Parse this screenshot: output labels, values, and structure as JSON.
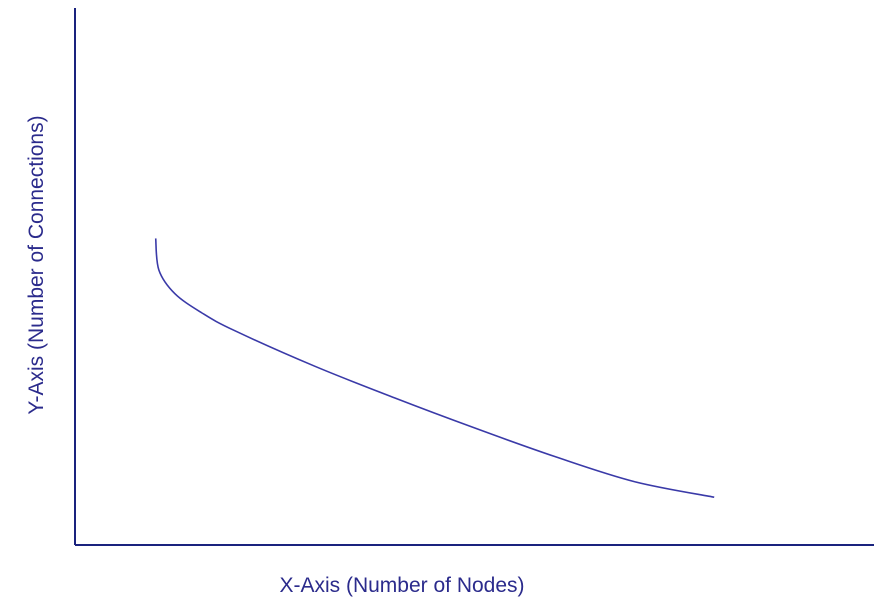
{
  "chart_data": {
    "type": "line",
    "title": "",
    "xlabel": "X-Axis (Number of Nodes)",
    "ylabel": "Y-Axis (Number of Connections)",
    "xlim": [
      0,
      100
    ],
    "ylim": [
      0,
      100
    ],
    "grid": false,
    "ticks": false,
    "series": [
      {
        "x": [
          10.1,
          10.5,
          12.5,
          15.9,
          20,
          30,
          40,
          50,
          60,
          70,
          80
        ],
        "y": [
          57.1,
          51.2,
          46.8,
          43.2,
          39.9,
          33.3,
          27.4,
          21.8,
          16.5,
          11.8,
          8.9
        ]
      }
    ]
  },
  "colors": {
    "axis": "#1a237e",
    "curve": "#3a3aa8",
    "label": "#2b2b8c"
  }
}
